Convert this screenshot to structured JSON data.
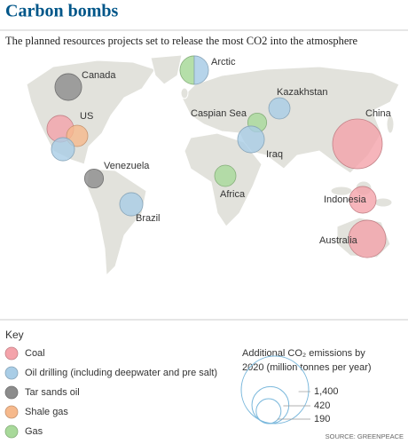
{
  "chart_data": {
    "type": "bubble_map",
    "title": "Carbon bombs",
    "subtitle": "The planned resources projects set to release the most CO2 into the atmosphere",
    "places": [
      {
        "name": "Canada",
        "projects": [
          {
            "color": "#8c8c8c",
            "value": 220
          }
        ]
      },
      {
        "name": "US",
        "projects": [
          {
            "color": "#f4a3aa",
            "value": 220
          },
          {
            "color": "#f6b98c",
            "value": 140
          },
          {
            "color": "#a9cde6",
            "value": 165
          }
        ]
      },
      {
        "name": "Venezuela",
        "projects": [
          {
            "color": "#8c8c8c",
            "value": 110
          }
        ]
      },
      {
        "name": "Brazil",
        "projects": [
          {
            "color": "#a9cde6",
            "value": 165
          }
        ]
      },
      {
        "name": "Arctic",
        "projects": [
          {
            "color": "#a8d99a",
            "value": 125
          },
          {
            "color": "#a9cde6",
            "value": 125
          }
        ]
      },
      {
        "name": "Kazakhstan",
        "projects": [
          {
            "color": "#a9cde6",
            "value": 140
          }
        ]
      },
      {
        "name": "Caspian Sea",
        "projects": [
          {
            "color": "#a8d99a",
            "value": 110
          }
        ]
      },
      {
        "name": "Iraq",
        "projects": [
          {
            "color": "#a9cde6",
            "value": 220
          }
        ]
      },
      {
        "name": "Africa",
        "projects": [
          {
            "color": "#a8d99a",
            "value": 140
          }
        ]
      },
      {
        "name": "China",
        "projects": [
          {
            "color": "#f4a3aa",
            "value": 760
          }
        ]
      },
      {
        "name": "Indonesia",
        "projects": [
          {
            "color": "#f4a3aa",
            "value": 220
          }
        ]
      },
      {
        "name": "Australia",
        "projects": [
          {
            "color": "#f4a3aa",
            "value": 430
          }
        ]
      }
    ],
    "key": {
      "title": "Key",
      "items": [
        {
          "name": "Coal",
          "color": "#f4a3aa"
        },
        {
          "name": "Oil drilling (including deepwater and pre salt)",
          "color": "#a9cde6"
        },
        {
          "name": "Tar sands oil",
          "color": "#8c8c8c"
        },
        {
          "name": "Shale gas",
          "color": "#f6b98c"
        },
        {
          "name": "Gas",
          "color": "#a8d99a"
        }
      ]
    },
    "size_legend": {
      "title": [
        "Additional CO₂ emissions by",
        "2020 (million tonnes per year)"
      ],
      "values": [
        {
          "value": 1400,
          "label": "1,400"
        },
        420,
        190
      ]
    },
    "source": "SOURCE: GREENPEACE"
  }
}
